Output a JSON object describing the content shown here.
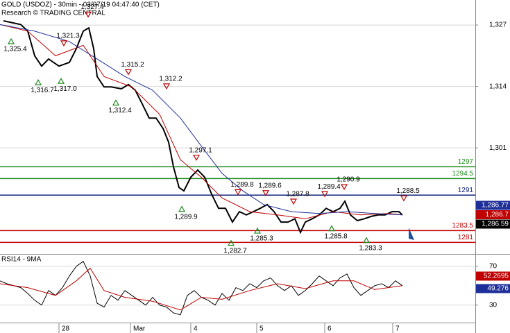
{
  "chart_data": [
    {
      "type": "line",
      "title": "GOLD (USDOZ) - 30min - 03/07/19 04:47:40 (CET)",
      "subtitle": "Research © TRADING CENTRAL",
      "xlim": [
        0,
        342.5
      ],
      "ylim": [
        1278.7,
        1332.3
      ],
      "yticks": [
        {
          "value": 1327,
          "label": "1,327"
        },
        {
          "value": 1314,
          "label": "1,314"
        },
        {
          "value": 1301,
          "label": "1,301"
        }
      ],
      "grid": true,
      "series": [
        {
          "color": "#000000",
          "x": [
            2.5,
            15,
            20,
            25,
            30,
            35,
            42.5,
            50,
            55,
            60,
            64,
            67.5,
            70,
            75,
            80,
            87.5,
            92.5,
            97.5,
            102.5,
            107.5,
            112.5,
            117.5,
            121.5,
            125,
            129,
            132.5,
            137.5,
            142.5,
            147.5,
            152.5,
            157.5,
            162.5,
            167.5,
            172.5,
            177.5,
            182.5,
            187.5,
            192.5,
            197.5,
            202.5,
            207.5,
            212.5,
            216.5,
            220,
            225,
            230,
            235,
            240,
            245,
            248.5,
            252.5,
            257.5,
            262.5,
            267.5,
            272.5,
            277.5,
            282.5,
            287.5,
            290
          ],
          "values": [
            1327.9,
            1327.1,
            1325.7,
            1320.5,
            1318.3,
            1319.8,
            1318.3,
            1319.1,
            1322.0,
            1325.7,
            1326.4,
            1322.0,
            1316.1,
            1313.9,
            1313.9,
            1313.5,
            1314.4,
            1313.2,
            1310.3,
            1307.3,
            1307.3,
            1305.1,
            1302.2,
            1297.0,
            1292.6,
            1291.9,
            1294.8,
            1296.3,
            1294.8,
            1291.2,
            1288.2,
            1288.2,
            1285.3,
            1287.5,
            1286.8,
            1287.5,
            1288.2,
            1289.0,
            1287.5,
            1285.3,
            1285.3,
            1286.0,
            1283.1,
            1285.3,
            1286.0,
            1286.8,
            1288.2,
            1287.5,
            1288.2,
            1289.7,
            1286.8,
            1285.6,
            1286.0,
            1286.5,
            1286.8,
            1286.8,
            1287.5,
            1287.5,
            1286.8
          ]
        },
        {
          "color": "#c00000",
          "x": [
            0,
            20,
            40,
            60,
            75,
            95,
            115,
            130,
            145,
            160,
            180,
            200,
            220,
            240,
            260,
            280,
            290
          ],
          "values": [
            1327.1,
            1325.7,
            1320.5,
            1322.7,
            1316.1,
            1313.9,
            1308.1,
            1298.5,
            1294.8,
            1290.4,
            1287.5,
            1286.8,
            1286.0,
            1287.5,
            1286.8,
            1287.1,
            1286.8
          ]
        },
        {
          "color": "#1f2f9a",
          "x": [
            0,
            25,
            50,
            70,
            90,
            110,
            130,
            145,
            160,
            175,
            190,
            210,
            230,
            250,
            270,
            290
          ],
          "values": [
            1327.1,
            1325.7,
            1323.5,
            1319.8,
            1316.1,
            1313.2,
            1307.3,
            1301.4,
            1295.6,
            1291.9,
            1289.0,
            1287.5,
            1287.1,
            1287.5,
            1287.1,
            1286.8
          ]
        }
      ],
      "levels": [
        {
          "value": 1297,
          "label": "1297",
          "color": "#1e8a1e"
        },
        {
          "value": 1294.5,
          "label": "1294.5",
          "color": "#1e8a1e"
        },
        {
          "value": 1291,
          "label": "1291",
          "color": "#0a1e7a"
        },
        {
          "value": 1283.5,
          "label": "1283.5",
          "color": "#c00000"
        },
        {
          "value": 1281,
          "label": "1281",
          "color": "#c00000"
        }
      ],
      "annotations": [
        {
          "value": 1325.4,
          "label": "1,325.4",
          "x": 8,
          "kind": "trough"
        },
        {
          "value": 1321.3,
          "label": "1,321.3",
          "x": 46,
          "kind": "peak"
        },
        {
          "value": 1327.4,
          "label": "1,327.4",
          "x": 63.5,
          "kind": "peak"
        },
        {
          "value": 1316.7,
          "label": "1,316.7",
          "x": 27.5,
          "kind": "trough"
        },
        {
          "value": 1317.0,
          "label": "1,317.0",
          "x": 44,
          "kind": "trough"
        },
        {
          "value": 1315.2,
          "label": "1,315.2",
          "x": 92.5,
          "kind": "peak"
        },
        {
          "value": 1312.4,
          "label": "1,312.4",
          "x": 83.5,
          "kind": "trough"
        },
        {
          "value": 1312.2,
          "label": "1,312.2",
          "x": 120,
          "kind": "peak"
        },
        {
          "value": 1297.1,
          "label": "1,297.1",
          "x": 141.5,
          "kind": "peak"
        },
        {
          "value": 1289.9,
          "label": "1,289.9",
          "x": 131,
          "kind": "trough"
        },
        {
          "value": 1289.8,
          "label": "1,289.8",
          "x": 171.5,
          "kind": "peak"
        },
        {
          "value": 1289.6,
          "label": "1,289.6",
          "x": 191.5,
          "kind": "peak"
        },
        {
          "value": 1287.8,
          "label": "1,287.8",
          "x": 211.5,
          "kind": "peak"
        },
        {
          "value": 1289.4,
          "label": "1,289.4",
          "x": 234,
          "kind": "peak"
        },
        {
          "value": 1290.9,
          "label": "1,290.9",
          "x": 248,
          "kind": "peak"
        },
        {
          "value": 1282.7,
          "label": "1,282.7",
          "x": 166.5,
          "kind": "trough"
        },
        {
          "value": 1285.3,
          "label": "1,285.3",
          "x": 185.5,
          "kind": "trough"
        },
        {
          "value": 1285.8,
          "label": "1,285.8",
          "x": 239,
          "kind": "trough"
        },
        {
          "value": 1283.3,
          "label": "1,283.3",
          "x": 264,
          "kind": "trough"
        },
        {
          "value": 1288.5,
          "label": "1,288.5",
          "x": 291,
          "kind": "peak"
        }
      ],
      "last_values": [
        {
          "value": 1286.77,
          "label": "1,286.77",
          "color": "#1f2f9a"
        },
        {
          "value": 1286.7,
          "label": "1,286.7",
          "color": "#c00000"
        },
        {
          "value": 1286.59,
          "label": "1,286.59",
          "color": "#000000"
        }
      ]
    },
    {
      "type": "line",
      "title": "RSI14 - 9MA",
      "xlim": [
        0,
        342.5
      ],
      "ylim": [
        12,
        82
      ],
      "yticks": [
        70,
        30
      ],
      "xticks": [
        {
          "value": 42.5,
          "label": "28"
        },
        {
          "value": 94,
          "label": "Mar"
        },
        {
          "value": 137.5,
          "label": "4"
        },
        {
          "value": 185,
          "label": "5"
        },
        {
          "value": 234,
          "label": "6"
        },
        {
          "value": 283,
          "label": "7"
        }
      ],
      "series": [
        {
          "color": "#000000",
          "x": [
            0,
            5,
            10,
            15,
            20,
            25,
            30,
            35,
            40,
            45,
            50,
            55,
            60,
            65,
            70,
            75,
            80,
            85,
            90,
            95,
            100,
            105,
            110,
            115,
            120,
            125,
            130,
            135,
            140,
            145,
            150,
            155,
            160,
            165,
            170,
            175,
            180,
            185,
            190,
            195,
            200,
            205,
            210,
            215,
            220,
            225,
            230,
            235,
            240,
            245,
            250,
            255,
            260,
            265,
            270,
            275,
            280,
            285,
            290
          ],
          "values": [
            55,
            52,
            50,
            48,
            42,
            35,
            30,
            45,
            40,
            48,
            60,
            70,
            75,
            60,
            32,
            28,
            40,
            35,
            45,
            40,
            35,
            30,
            38,
            30,
            28,
            22,
            20,
            40,
            45,
            38,
            35,
            30,
            42,
            35,
            48,
            45,
            52,
            48,
            55,
            58,
            50,
            45,
            50,
            40,
            45,
            52,
            60,
            55,
            50,
            58,
            62,
            48,
            40,
            45,
            50,
            52,
            48,
            55,
            50
          ]
        },
        {
          "color": "#c00000",
          "x": [
            0,
            20,
            40,
            55,
            65,
            75,
            90,
            110,
            130,
            145,
            160,
            180,
            200,
            220,
            240,
            255,
            270,
            290
          ],
          "values": [
            52,
            48,
            40,
            55,
            68,
            45,
            38,
            34,
            25,
            38,
            36,
            45,
            52,
            47,
            55,
            55,
            46,
            50
          ]
        }
      ],
      "last_values": [
        {
          "value": 52.2695,
          "label": "52.2695",
          "color": "#c00000"
        },
        {
          "value": 49.276,
          "label": "49.276",
          "color": "#1f2f9a"
        }
      ]
    }
  ]
}
